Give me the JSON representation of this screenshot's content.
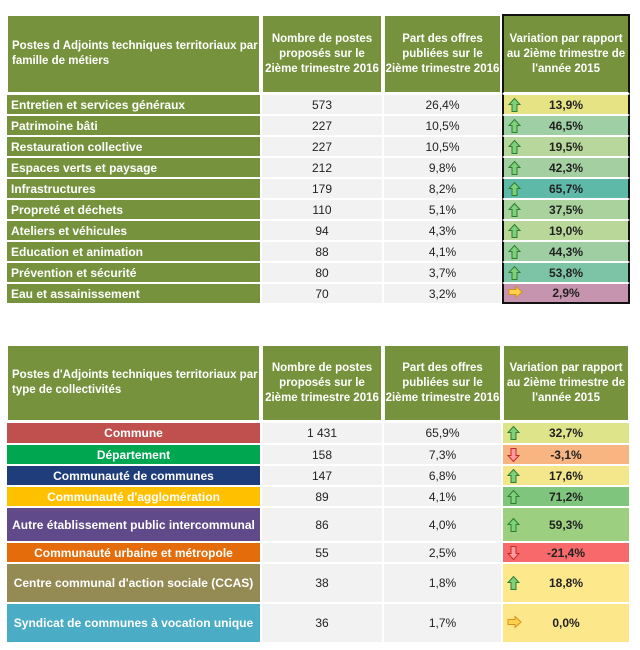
{
  "table1": {
    "headers": [
      "Postes d Adjoints techniques territoriaux par famille de métiers",
      "Nombre de postes proposés sur le 2ième trimestre 2016",
      "Part des offres publiées sur le 2ième trimestre 2016",
      "Variation par rapport au 2ième trimestre de l'année 2015"
    ],
    "rows": [
      {
        "label": "Entretien et services généraux",
        "count": "573",
        "share": "26,4%",
        "variation": "13,9%",
        "trend": "up",
        "color": "#e6e385"
      },
      {
        "label": "Patrimoine bâti",
        "count": "227",
        "share": "10,5%",
        "variation": "46,5%",
        "trend": "up",
        "color": "#9fcfa4"
      },
      {
        "label": "Restauration collective",
        "count": "227",
        "share": "10,5%",
        "variation": "19,5%",
        "trend": "up",
        "color": "#b8d79c"
      },
      {
        "label": "Espaces verts et paysage",
        "count": "212",
        "share": "9,8%",
        "variation": "42,3%",
        "trend": "up",
        "color": "#a4d0a1"
      },
      {
        "label": "Infrastructures",
        "count": "179",
        "share": "8,2%",
        "variation": "65,7%",
        "trend": "up",
        "color": "#5fb9a9"
      },
      {
        "label": "Propreté et déchets",
        "count": "110",
        "share": "5,1%",
        "variation": "37,5%",
        "trend": "up",
        "color": "#a9d29d"
      },
      {
        "label": "Ateliers et véhicules",
        "count": "94",
        "share": "4,3%",
        "variation": "19,0%",
        "trend": "up",
        "color": "#bad79a"
      },
      {
        "label": "Education et animation",
        "count": "88",
        "share": "4,1%",
        "variation": "44,3%",
        "trend": "up",
        "color": "#9fcea3"
      },
      {
        "label": "Prévention et sécurité",
        "count": "80",
        "share": "3,7%",
        "variation": "53,8%",
        "trend": "up",
        "color": "#7dc3a6"
      },
      {
        "label": "Eau et assainissement",
        "count": "70",
        "share": "3,2%",
        "variation": "2,9%",
        "trend": "right",
        "color": "#c694ae"
      }
    ]
  },
  "table2": {
    "headers": [
      "Postes d'Adjoints techniques territoriaux par type de collectivités",
      "Nombre de postes proposés sur le 2ième trimestre 2016",
      "Part des offres publiées sur le 2ième trimestre 2016",
      "Variation par rapport au 2ième trimestre de l'année 2015"
    ],
    "rows": [
      {
        "label": "Commune",
        "count": "1 431",
        "share": "65,9%",
        "variation": "32,7%",
        "trend": "up",
        "color": "#dee48a",
        "labelColor": "#c0504d"
      },
      {
        "label": "Département",
        "count": "158",
        "share": "7,3%",
        "variation": "-3,1%",
        "trend": "down",
        "color": "#f8b481",
        "labelColor": "#00a650"
      },
      {
        "label": "Communauté de communes",
        "count": "147",
        "share": "6,8%",
        "variation": "17,6%",
        "trend": "up",
        "color": "#f3e68b",
        "labelColor": "#1f3d7a"
      },
      {
        "label": "Communauté d'agglomération",
        "count": "89",
        "share": "4,1%",
        "variation": "71,2%",
        "trend": "up",
        "color": "#7fc57d",
        "labelColor": "#ffc000"
      },
      {
        "label": "Autre établissement public intercommunal",
        "count": "86",
        "share": "4,0%",
        "variation": "59,3%",
        "trend": "up",
        "color": "#9ccf80",
        "labelColor": "#604a8a"
      },
      {
        "label": "Communauté urbaine et métropole",
        "count": "55",
        "share": "2,5%",
        "variation": "-21,4%",
        "trend": "down",
        "color": "#f8696b",
        "labelColor": "#e46c0a"
      },
      {
        "label": "Centre communal d'action sociale (CCAS)",
        "count": "38",
        "share": "1,8%",
        "variation": "18,8%",
        "trend": "up",
        "color": "#fde98b",
        "labelColor": "#948a54"
      },
      {
        "label": "Syndicat de communes à vocation unique",
        "count": "36",
        "share": "1,7%",
        "variation": "0,0%",
        "trend": "right",
        "color": "#fce88a",
        "labelColor": "#4bacc6"
      }
    ]
  }
}
